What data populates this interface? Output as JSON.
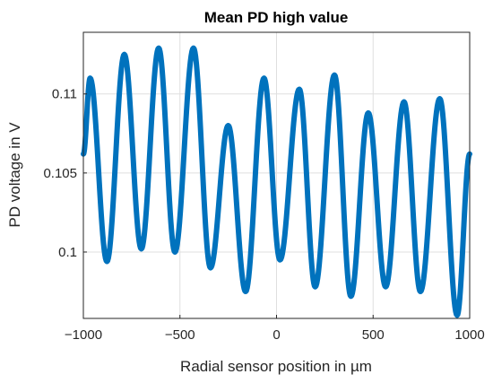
{
  "chart_data": {
    "type": "line",
    "title": "Mean PD high value",
    "xlabel": "Radial sensor position in µm",
    "ylabel": "PD voltage in V",
    "xlim": [
      -1000,
      1000
    ],
    "ylim": [
      0.0958,
      0.1139
    ],
    "grid": true,
    "legend": "none",
    "xticks": [
      -1000,
      -500,
      0,
      500,
      1000
    ],
    "xtick_labels": [
      "−1000",
      "−500",
      "0",
      "500",
      "1000"
    ],
    "yticks": [
      0.1,
      0.105,
      0.11
    ],
    "ytick_labels": [
      "0.1",
      "0.105",
      "0.11"
    ],
    "series": [
      {
        "color": "#0072BD",
        "points": [
          [
            -1000,
            0.1062
          ],
          [
            -965,
            0.111
          ],
          [
            -878,
            0.0994
          ],
          [
            -788,
            0.1125
          ],
          [
            -700,
            0.1002
          ],
          [
            -610,
            0.1129
          ],
          [
            -526,
            0.1
          ],
          [
            -430,
            0.1129
          ],
          [
            -342,
            0.099
          ],
          [
            -250,
            0.108
          ],
          [
            -160,
            0.0975
          ],
          [
            -65,
            0.111
          ],
          [
            18,
            0.0995
          ],
          [
            118,
            0.1103
          ],
          [
            200,
            0.0978
          ],
          [
            300,
            0.1112
          ],
          [
            385,
            0.0972
          ],
          [
            475,
            0.1088
          ],
          [
            565,
            0.0978
          ],
          [
            660,
            0.1095
          ],
          [
            745,
            0.0975
          ],
          [
            845,
            0.1097
          ],
          [
            935,
            0.096
          ],
          [
            1000,
            0.1062
          ]
        ]
      }
    ]
  }
}
